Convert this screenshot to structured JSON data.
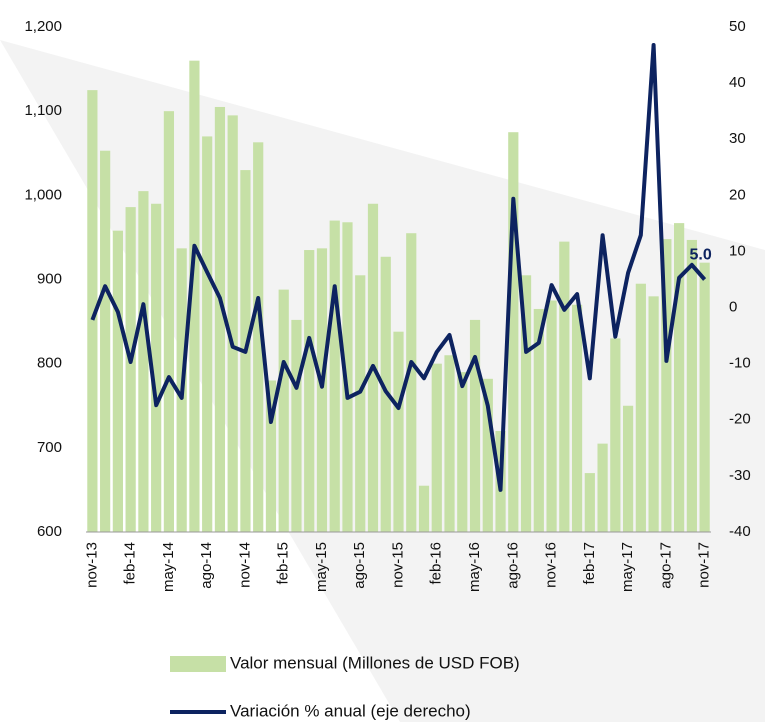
{
  "chart_data": {
    "type": "bar-line",
    "categories": [
      "nov-13",
      null,
      null,
      "feb-14",
      null,
      null,
      "may-14",
      null,
      null,
      "ago-14",
      null,
      null,
      "nov-14",
      null,
      null,
      "feb-15",
      null,
      null,
      "may-15",
      null,
      null,
      "ago-15",
      null,
      null,
      "nov-15",
      null,
      null,
      "feb-16",
      null,
      null,
      "may-16",
      null,
      null,
      "ago-16",
      null,
      null,
      "nov-16",
      null,
      null,
      "feb-17",
      null,
      null,
      "may-17",
      null,
      null,
      "ago-17",
      null,
      null,
      "nov-17"
    ],
    "series": [
      {
        "name": "Valor mensual (Millones de USD FOB)",
        "type": "bar",
        "color": "#c6e0a6",
        "values": [
          1125,
          1053,
          958,
          986,
          1005,
          990,
          1100,
          937,
          1160,
          1070,
          1105,
          1095,
          1030,
          1063,
          780,
          888,
          852,
          935,
          937,
          970,
          968,
          905,
          990,
          927,
          838,
          955,
          655,
          800,
          810,
          790,
          852,
          782,
          720,
          1075,
          905,
          865,
          875,
          945,
          870,
          670,
          705,
          830,
          750,
          895,
          880,
          948,
          967,
          947,
          920
        ]
      },
      {
        "name": "Variación % anual (eje derecho)",
        "type": "line",
        "axis": "y2",
        "color": "#0d2360",
        "values": [
          -2.2,
          3.8,
          -0.8,
          -9.7,
          0.6,
          -17.4,
          -12.4,
          -16.1,
          11.0,
          6.3,
          1.7,
          -7.0,
          -7.9,
          1.7,
          -20.4,
          -9.7,
          -14.3,
          -5.4,
          -14.1,
          3.8,
          -16.1,
          -15.0,
          -10.4,
          -14.9,
          -17.9,
          -9.7,
          -12.6,
          -7.9,
          -4.9,
          -14.0,
          -8.8,
          -17.5,
          -32.5,
          19.4,
          -7.9,
          -6.3,
          4.0,
          -0.4,
          2.4,
          -12.6,
          12.9,
          -5.2,
          6.2,
          12.9,
          46.8,
          -9.5,
          5.3,
          7.6,
          5.0
        ],
        "value_labels": [
          null,
          null,
          null,
          null,
          null,
          null,
          null,
          null,
          null,
          null,
          null,
          null,
          null,
          null,
          null,
          null,
          null,
          null,
          null,
          null,
          null,
          null,
          null,
          null,
          null,
          null,
          null,
          null,
          null,
          null,
          null,
          null,
          null,
          null,
          null,
          null,
          null,
          null,
          null,
          null,
          null,
          null,
          null,
          null,
          null,
          null,
          null,
          null,
          "5.0"
        ]
      }
    ],
    "ylim": [
      600,
      1200
    ],
    "yticks": [
      600,
      700,
      800,
      900,
      {
        "value": 1000,
        "label": "1,000"
      },
      {
        "value": 1100,
        "label": "1,100"
      },
      {
        "value": 1200,
        "label": "1,200"
      }
    ],
    "y2lim": [
      -40,
      50
    ],
    "y2ticks": [
      -40,
      -30,
      -20,
      -10,
      0,
      10,
      20,
      30,
      40,
      50
    ],
    "legend": "bottom"
  }
}
